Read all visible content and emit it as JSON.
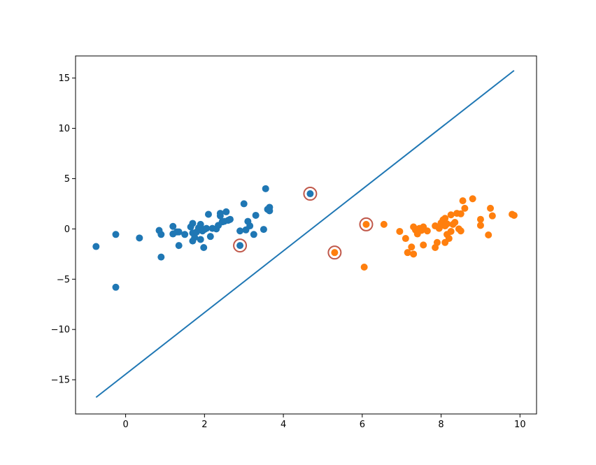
{
  "chart_data": {
    "type": "scatter",
    "title": "",
    "xlabel": "",
    "ylabel": "",
    "xlim": [
      -1.27,
      10.42
    ],
    "ylim": [
      -18.4,
      17.2
    ],
    "x_ticks": [
      0,
      2,
      4,
      6,
      8,
      10
    ],
    "y_ticks": [
      -15,
      -10,
      -5,
      0,
      5,
      10,
      15
    ],
    "x_tick_labels": [
      "0",
      "2",
      "4",
      "6",
      "8",
      "10"
    ],
    "y_tick_labels": [
      "−15",
      "−10",
      "−5",
      "0",
      "5",
      "10",
      "15"
    ],
    "grid": false,
    "legend": "none",
    "series": [
      {
        "color": "#1f77b4",
        "points": [
          [
            -0.75,
            -1.75
          ],
          [
            -0.25,
            -0.55
          ],
          [
            -0.25,
            -5.8
          ],
          [
            0.35,
            -0.9
          ],
          [
            0.85,
            -0.15
          ],
          [
            0.9,
            -0.55
          ],
          [
            0.9,
            -2.8
          ],
          [
            1.2,
            0.25
          ],
          [
            1.2,
            -0.5
          ],
          [
            1.3,
            -0.3
          ],
          [
            1.35,
            -0.3
          ],
          [
            1.35,
            -1.65
          ],
          [
            1.5,
            -0.55
          ],
          [
            1.65,
            0.2
          ],
          [
            1.7,
            0.55
          ],
          [
            1.7,
            -0.4
          ],
          [
            1.7,
            -1.2
          ],
          [
            1.75,
            -0.85
          ],
          [
            1.8,
            -0.3
          ],
          [
            1.85,
            0.1
          ],
          [
            1.9,
            0.45
          ],
          [
            1.9,
            -1.05
          ],
          [
            1.95,
            -0.2
          ],
          [
            1.98,
            -1.85
          ],
          [
            2.0,
            -0.05
          ],
          [
            2.05,
            0.05
          ],
          [
            2.1,
            1.45
          ],
          [
            2.15,
            -0.75
          ],
          [
            2.2,
            0.05
          ],
          [
            2.3,
            0.0
          ],
          [
            2.35,
            0.35
          ],
          [
            2.4,
            1.3
          ],
          [
            2.4,
            1.55
          ],
          [
            2.45,
            0.7
          ],
          [
            2.5,
            0.75
          ],
          [
            2.55,
            1.7
          ],
          [
            2.6,
            0.85
          ],
          [
            2.65,
            0.95
          ],
          [
            2.9,
            -0.2
          ],
          [
            3.0,
            2.5
          ],
          [
            3.05,
            -0.1
          ],
          [
            3.1,
            0.75
          ],
          [
            3.15,
            0.3
          ],
          [
            3.25,
            -0.55
          ],
          [
            3.3,
            1.35
          ],
          [
            3.5,
            -0.05
          ],
          [
            3.55,
            4.0
          ],
          [
            3.6,
            1.95
          ],
          [
            3.65,
            2.15
          ],
          [
            3.65,
            1.8
          ],
          [
            2.9,
            -1.65
          ],
          [
            4.68,
            3.5
          ]
        ]
      },
      {
        "color": "#ff7f0e",
        "points": [
          [
            5.3,
            -2.35
          ],
          [
            6.05,
            -3.8
          ],
          [
            6.1,
            0.45
          ],
          [
            6.55,
            0.45
          ],
          [
            6.95,
            -0.25
          ],
          [
            7.1,
            -0.95
          ],
          [
            7.15,
            -2.35
          ],
          [
            7.25,
            -1.8
          ],
          [
            7.3,
            -2.5
          ],
          [
            7.3,
            0.2
          ],
          [
            7.35,
            -0.1
          ],
          [
            7.4,
            -0.5
          ],
          [
            7.45,
            0.05
          ],
          [
            7.5,
            -0.15
          ],
          [
            7.55,
            0.2
          ],
          [
            7.55,
            -1.6
          ],
          [
            7.65,
            -0.2
          ],
          [
            7.85,
            0.3
          ],
          [
            7.85,
            -1.85
          ],
          [
            7.9,
            -1.35
          ],
          [
            7.95,
            0.05
          ],
          [
            8.0,
            0.6
          ],
          [
            8.05,
            0.9
          ],
          [
            8.1,
            -1.35
          ],
          [
            8.1,
            1.05
          ],
          [
            8.1,
            0.3
          ],
          [
            8.15,
            -0.55
          ],
          [
            8.15,
            0.5
          ],
          [
            8.2,
            -0.95
          ],
          [
            8.25,
            1.4
          ],
          [
            8.25,
            -0.25
          ],
          [
            8.3,
            0.45
          ],
          [
            8.35,
            0.65
          ],
          [
            8.4,
            1.55
          ],
          [
            8.45,
            0.0
          ],
          [
            8.5,
            -0.2
          ],
          [
            8.5,
            1.5
          ],
          [
            8.55,
            2.8
          ],
          [
            8.6,
            2.05
          ],
          [
            8.8,
            3.0
          ],
          [
            9.0,
            0.95
          ],
          [
            9.0,
            0.35
          ],
          [
            9.2,
            -0.6
          ],
          [
            9.25,
            2.05
          ],
          [
            9.3,
            1.3
          ],
          [
            9.8,
            1.45
          ],
          [
            9.85,
            1.35
          ]
        ]
      }
    ],
    "support_vectors": {
      "edge_color": "#c0584a",
      "points": [
        [
          2.9,
          -1.65
        ],
        [
          4.68,
          3.5
        ],
        [
          5.3,
          -2.35
        ],
        [
          6.1,
          0.45
        ]
      ]
    },
    "decision_line": {
      "color": "#1f77b4",
      "from": [
        -0.75,
        -16.75
      ],
      "to": [
        9.85,
        15.75
      ]
    }
  }
}
